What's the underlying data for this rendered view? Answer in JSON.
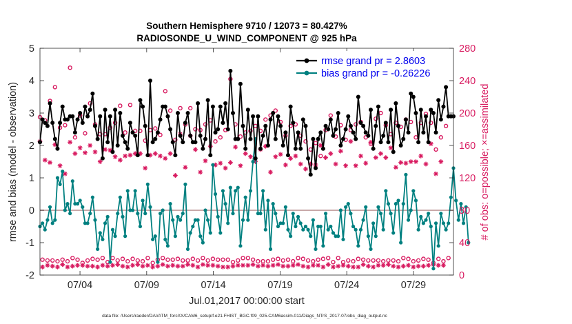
{
  "chart_data": {
    "type": "line",
    "title": [
      "Southern Hemisphere 9710 / 12073 = 80.427%",
      "RADIOSONDE_U_WIND_COMPONENT @ 925 hPa"
    ],
    "ylabel": "rmse and bias (model - observation)",
    "y2label": "# of obs: o=possible; ×=assimilated",
    "xlabel": "Jul.01,2017 00:00:00 start",
    "footnote": "data file: /Users/raeder/DAI/ATM_forcXX/CAM6_setup/f.e21.FHIST_BGC.f09_025.CAM6assim.011/Diags_NTrS_2017-07/obs_diag_output.nc",
    "ylim": [
      -2,
      5
    ],
    "y2lim": [
      0,
      280
    ],
    "yticks": [
      "-2",
      "-1",
      "0",
      "1",
      "2",
      "3",
      "4",
      "5"
    ],
    "y2ticks": [
      "0",
      "40",
      "80",
      "120",
      "160",
      "200",
      "240",
      "280"
    ],
    "xlim": [
      1,
      32
    ],
    "xticks": [
      {
        "x": 4,
        "label": "07/04"
      },
      {
        "x": 9,
        "label": "07/09"
      },
      {
        "x": 14,
        "label": "07/14"
      },
      {
        "x": 19,
        "label": "07/19"
      },
      {
        "x": 24,
        "label": "07/24"
      },
      {
        "x": 29,
        "label": "07/29"
      }
    ],
    "legend_position": "top-right",
    "colors": {
      "rmse": "#000000",
      "bias": "#008080",
      "obs": "#d81b60",
      "zero_line": "#c8a8a8"
    },
    "series": [
      {
        "name": "rmse grand pr = 2.8603",
        "key": "rmse",
        "values": [
          2.1,
          2.8,
          2.7,
          2.6,
          3.3,
          2.7,
          2.2,
          1.9,
          2.7,
          3.2,
          2.8,
          2.8,
          2.9,
          2.9,
          2.4,
          2.8,
          3.0,
          2.7,
          3.2,
          2.9,
          3.1,
          3.6,
          2.6,
          2.2,
          2.9,
          1.6,
          3.1,
          2.1,
          2.9,
          1.8,
          3.1,
          2.0,
          3.0,
          2.3,
          2.1,
          1.9,
          2.7,
          2.4,
          2.3,
          1.7,
          3.4,
          3.2,
          2.6,
          1.7,
          4.0,
          2.1,
          2.2,
          2.4,
          2.8,
          3.2,
          3.2,
          2.9,
          2.5,
          2.1,
          1.7,
          3.0,
          2.3,
          2.1,
          2.7,
          3.0,
          2.3,
          2.1,
          2.1,
          3.3,
          2.3,
          1.9,
          2.2,
          3.4,
          1.7,
          3.2,
          2.4,
          2.5,
          3.2,
          2.7,
          3.3,
          2.5,
          4.3,
          3.0,
          2.2,
          2.2,
          3.9,
          2.6,
          1.9,
          3.1,
          2.2,
          2.9,
          1.6,
          2.9,
          1.9,
          2.3,
          2.6,
          2.0,
          2.8,
          3.0,
          2.2,
          2.9,
          2.6,
          2.0,
          2.4,
          1.7,
          3.2,
          2.7,
          1.9,
          2.4,
          1.9,
          2.8,
          2.6,
          1.6,
          1.1,
          2.2,
          1.3,
          2.2,
          2.4,
          1.9,
          2.6,
          2.5,
          2.8,
          2.3,
          2.5,
          3.0,
          2.0,
          2.2,
          2.5,
          2.9,
          2.6,
          2.4,
          2.2,
          3.5,
          2.7,
          2.6,
          2.4,
          2.3,
          3.1,
          1.9,
          2.6,
          3.2,
          2.1,
          2.3,
          2.7,
          2.1,
          3.1,
          1.8,
          3.3,
          2.6,
          2.0,
          2.2,
          2.8,
          2.4,
          3.6,
          3.5,
          3.0,
          2.1,
          3.1,
          2.4,
          2.9,
          2.1,
          3.1,
          3.0,
          2.4,
          3.4,
          2.8,
          3.2,
          3.8,
          2.9,
          2.9,
          2.9
        ]
      },
      {
        "name": "bias grand pr = -0.26226",
        "key": "bias",
        "values": [
          -0.5,
          -0.4,
          -0.6,
          -0.3,
          0.1,
          -0.4,
          -0.3,
          1.0,
          0.8,
          1.2,
          0.0,
          0.2,
          -0.1,
          0.9,
          0.2,
          0.2,
          0.3,
          0.1,
          -0.4,
          -0.4,
          -0.1,
          0.4,
          -0.3,
          -1.2,
          -0.7,
          -0.9,
          -0.4,
          -0.2,
          -1.6,
          -0.6,
          -0.8,
          -0.1,
          0.4,
          -0.2,
          -0.8,
          0.6,
          0.0,
          0.0,
          0.6,
          -0.1,
          -0.5,
          0.3,
          -0.1,
          0.8,
          0.1,
          -0.9,
          -0.8,
          -1.6,
          -0.1,
          0.0,
          -0.9,
          -1.1,
          0.2,
          -0.3,
          -0.8,
          -0.2,
          -0.3,
          -0.1,
          0.8,
          -1.2,
          -0.7,
          -0.5,
          -0.3,
          -0.3,
          -0.8,
          -1.0,
          0.0,
          -0.3,
          -0.7,
          1.4,
          0.5,
          -0.2,
          -0.7,
          0.6,
          0.2,
          -0.4,
          0.7,
          -0.1,
          0.6,
          0.7,
          -1.1,
          -0.3,
          0.4,
          -0.3,
          0.6,
          1.5,
          2.2,
          -0.1,
          -0.1,
          0.6,
          -0.6,
          0.3,
          -1.2,
          0.2,
          -0.1,
          -0.5,
          -0.4,
          -0.4,
          0.1,
          -0.6,
          -0.8,
          -0.1,
          -0.5,
          -0.2,
          -0.4,
          -0.6,
          -0.5,
          -0.6,
          -0.8,
          -0.3,
          -1.2,
          -0.5,
          -0.5,
          -1.1,
          -0.1,
          -0.6,
          -0.5,
          -0.7,
          -0.8,
          -0.8,
          0.0,
          -0.9,
          0.1,
          0.2,
          -0.1,
          -0.5,
          -0.6,
          -1.1,
          -0.6,
          -0.3,
          0.1,
          -0.8,
          -1.2,
          -0.4,
          -0.8,
          0.1,
          -0.1,
          -0.6,
          0.6,
          0.2,
          -0.1,
          -0.7,
          0.2,
          0.3,
          -1.0,
          0.2,
          1.1,
          -0.3,
          0.0,
          0.6,
          0.3,
          -0.6,
          -0.2,
          -0.4,
          -0.3,
          -0.1,
          -0.5,
          -1.8,
          -0.4,
          -1.1,
          -0.1,
          -0.4,
          -0.6,
          -0.4,
          0.4,
          1.3,
          0.3,
          -0.3,
          0.2,
          -0.4,
          0.1,
          -1.0
        ]
      },
      {
        "name": "possible (o)",
        "key": "possible",
        "values": [
          195,
          19,
          191,
          18,
          215,
          18,
          232,
          17,
          182,
          19,
          185,
          17,
          256,
          21,
          170,
          19,
          197,
          15,
          175,
          18,
          212,
          20,
          186,
          19,
          174,
          21,
          174,
          16,
          182,
          21,
          188,
          18,
          209,
          20,
          176,
          17,
          210,
          20,
          178,
          18,
          178,
          17,
          166,
          21,
          179,
          15,
          181,
          19,
          173,
          21,
          227,
          19,
          203,
          19,
          167,
          20,
          206,
          18,
          186,
          18,
          206,
          20,
          180,
          18,
          179,
          21,
          186,
          18,
          191,
          20,
          165,
          19,
          170,
          19,
          179,
          19,
          242,
          16,
          186,
          18,
          171,
          21,
          176,
          21,
          178,
          19,
          184,
          17,
          178,
          17,
          192,
          17,
          197,
          19,
          203,
          20,
          189,
          18,
          172,
          19,
          184,
          17,
          186,
          21,
          172,
          20,
          165,
          18,
          155,
          17,
          163,
          19,
          147,
          20,
          179,
          21,
          197,
          16,
          171,
          21,
          185,
          16,
          167,
          18,
          179,
          17,
          186,
          20,
          189,
          19,
          170,
          18,
          162,
          18,
          193,
          18,
          200,
          17,
          185,
          18,
          174,
          18,
          188,
          17,
          183,
          21,
          192,
          20,
          189,
          17,
          170,
          18,
          188,
          20,
          199,
          19,
          188,
          15,
          155,
          20,
          170,
          17,
          184,
          21
        ]
      },
      {
        "name": "assimilated (×)",
        "key": "assimilated",
        "values": [
          165,
          10,
          142,
          12,
          139,
          11,
          161,
          10,
          135,
          13,
          125,
          10,
          164,
          11,
          150,
          12,
          157,
          12,
          151,
          11,
          160,
          11,
          152,
          10,
          140,
          12,
          155,
          11,
          154,
          12,
          146,
          13,
          142,
          11,
          147,
          10,
          148,
          12,
          150,
          13,
          150,
          11,
          132,
          12,
          148,
          10,
          150,
          11,
          147,
          13,
          144,
          11,
          150,
          12,
          123,
          11,
          174,
          11,
          133,
          13,
          172,
          12,
          155,
          10,
          127,
          13,
          141,
          12,
          159,
          12,
          136,
          11,
          138,
          10,
          132,
          10,
          139,
          11,
          158,
          12,
          135,
          12,
          150,
          12,
          146,
          13,
          140,
          11,
          155,
          12,
          159,
          11,
          127,
          12,
          146,
          13,
          149,
          11,
          136,
          11,
          144,
          12,
          147,
          13,
          137,
          11,
          131,
          10,
          137,
          12,
          136,
          12,
          160,
          10,
          145,
          13,
          150,
          10,
          137,
          11,
          153,
          12,
          135,
          11,
          165,
          10,
          135,
          10,
          147,
          13,
          138,
          11,
          164,
          10,
          145,
          12,
          150,
          12,
          145,
          13,
          157,
          11,
          133,
          10,
          139,
          11,
          138,
          12,
          140,
          10,
          140,
          11,
          147,
          11,
          137,
          12,
          162,
          13,
          125,
          12,
          140,
          12
        ]
      }
    ]
  }
}
